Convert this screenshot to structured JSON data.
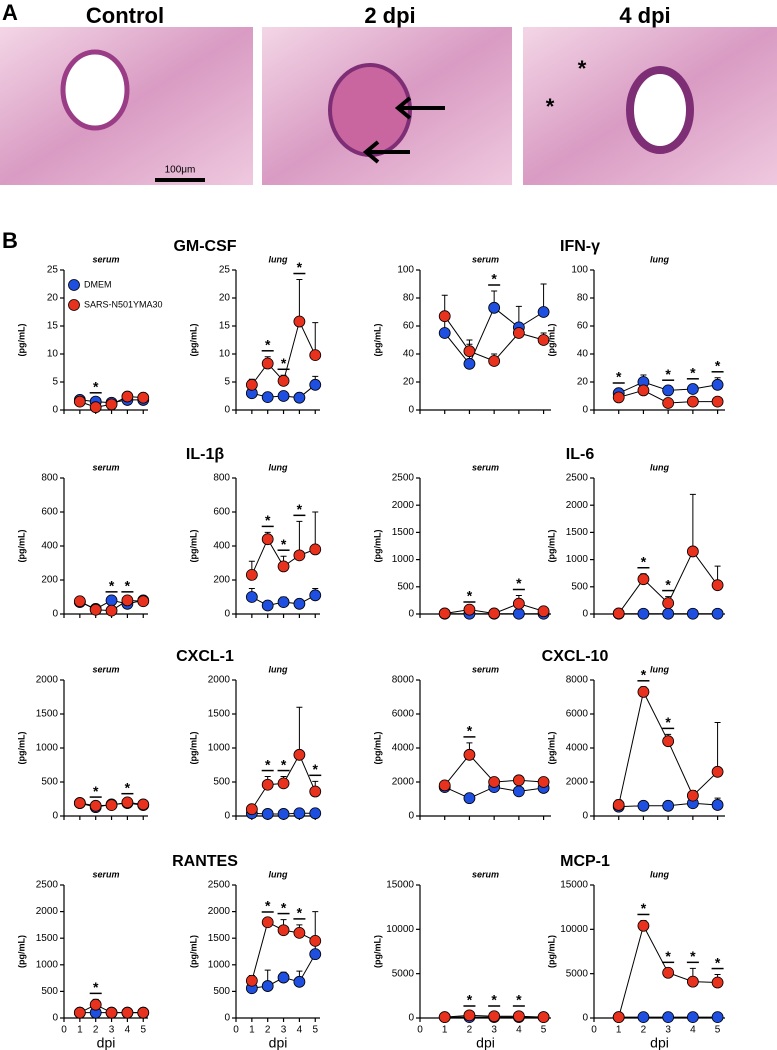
{
  "panel_a": {
    "label": "A",
    "images": [
      {
        "title": "Control",
        "scale": "100μm"
      },
      {
        "title": "2 dpi"
      },
      {
        "title": "4 dpi",
        "marks": [
          "*",
          "*"
        ]
      }
    ]
  },
  "panel_b": {
    "label": "B",
    "cytokines": [
      "GM-CSF",
      "IFN-γ",
      "IL-1β",
      "IL-6",
      "CXCL-1",
      "CXCL-10",
      "RANTES",
      "MCP-1"
    ]
  },
  "chart_data": [
    {
      "type": "line",
      "title": "serum",
      "ylabel": "(pg/mL)",
      "x": [
        1,
        2,
        3,
        4,
        5
      ],
      "xlim": [
        0,
        5.3
      ],
      "xticks": [
        0,
        1,
        2,
        3,
        4,
        5
      ],
      "ylim": [
        0,
        25
      ],
      "yticks": [
        0,
        5,
        10,
        15,
        20,
        25
      ],
      "legend": "upper left",
      "series": [
        {
          "name": "DMEM",
          "color": "#1f4fe0",
          "values": [
            1.8,
            1.5,
            1.3,
            1.8,
            1.8
          ],
          "errors": [
            0.5,
            0.5,
            0.4,
            0.5,
            0.5
          ]
        },
        {
          "name": "SARS-N501YMA30",
          "color": "#e8321e",
          "values": [
            1.5,
            0.5,
            1.0,
            2.4,
            2.2
          ],
          "errors": [
            0.5,
            0.4,
            0.4,
            0.5,
            0.5
          ]
        }
      ],
      "annotations": [
        {
          "x": 2,
          "text": "*"
        }
      ]
    },
    {
      "type": "line",
      "title": "lung",
      "ylabel": "(pg/mL)",
      "x": [
        1,
        2,
        3,
        4,
        5
      ],
      "xlim": [
        0,
        5.3
      ],
      "xticks": [
        0,
        1,
        2,
        3,
        4,
        5
      ],
      "ylim": [
        0,
        25
      ],
      "yticks": [
        0,
        5,
        10,
        15,
        20,
        25
      ],
      "series": [
        {
          "color": "#1f4fe0",
          "values": [
            3,
            2.3,
            2.5,
            2.2,
            4.5
          ],
          "errors": [
            0.8,
            0.4,
            0.4,
            0.3,
            1.5
          ]
        },
        {
          "color": "#e8321e",
          "values": [
            4.5,
            8.3,
            5.2,
            15.8,
            9.8
          ],
          "errors": [
            1,
            1.2,
            1,
            7.5,
            5.8
          ]
        }
      ],
      "annotations": [
        {
          "x": 2,
          "text": "*"
        },
        {
          "x": 3,
          "text": "*"
        },
        {
          "x": 4,
          "text": "*"
        }
      ]
    },
    {
      "type": "line",
      "title": "serum",
      "ylabel": "(pg/mL)",
      "x": [
        1,
        2,
        3,
        4,
        5
      ],
      "xlim": [
        0,
        5.3
      ],
      "xticks": [
        0,
        1,
        2,
        3,
        4,
        5
      ],
      "ylim": [
        0,
        100
      ],
      "yticks": [
        0,
        20,
        40,
        60,
        80,
        100
      ],
      "series": [
        {
          "color": "#1f4fe0",
          "values": [
            55,
            33,
            73,
            59,
            70
          ],
          "errors": [
            10,
            14,
            12,
            15,
            20
          ]
        },
        {
          "color": "#e8321e",
          "values": [
            67,
            42,
            35,
            55,
            50
          ],
          "errors": [
            15,
            8,
            5,
            5,
            5
          ]
        }
      ],
      "annotations": [
        {
          "x": 3,
          "text": "*"
        }
      ]
    },
    {
      "type": "line",
      "title": "lung",
      "ylabel": "(pg/mL)",
      "x": [
        1,
        2,
        3,
        4,
        5
      ],
      "xlim": [
        0,
        5.3
      ],
      "xticks": [
        0,
        1,
        2,
        3,
        4,
        5
      ],
      "ylim": [
        0,
        100
      ],
      "yticks": [
        0,
        20,
        40,
        60,
        80,
        100
      ],
      "series": [
        {
          "color": "#1f4fe0",
          "values": [
            12,
            20,
            14,
            15,
            18
          ],
          "errors": [
            3,
            5,
            3,
            3,
            5
          ]
        },
        {
          "color": "#e8321e",
          "values": [
            9,
            14,
            5,
            6,
            6
          ],
          "errors": [
            3,
            3,
            2,
            2,
            2
          ]
        }
      ],
      "annotations": [
        {
          "x": 1,
          "text": "*"
        },
        {
          "x": 3,
          "text": "*"
        },
        {
          "x": 4,
          "text": "*"
        },
        {
          "x": 5,
          "text": "*"
        }
      ]
    },
    {
      "type": "line",
      "title": "serum",
      "ylabel": "(pg/mL)",
      "x": [
        1,
        2,
        3,
        4,
        5
      ],
      "xlim": [
        0,
        5.3
      ],
      "xticks": [
        0,
        1,
        2,
        3,
        4,
        5
      ],
      "ylim": [
        0,
        800
      ],
      "yticks": [
        0,
        200,
        400,
        600,
        800
      ],
      "series": [
        {
          "color": "#1f4fe0",
          "values": [
            70,
            30,
            80,
            60,
            80
          ],
          "errors": [
            15,
            10,
            15,
            10,
            15
          ]
        },
        {
          "color": "#e8321e",
          "values": [
            75,
            25,
            20,
            80,
            75
          ],
          "errors": [
            15,
            10,
            10,
            15,
            10
          ]
        }
      ],
      "annotations": [
        {
          "x": 3,
          "text": "*"
        },
        {
          "x": 4,
          "text": "*"
        }
      ]
    },
    {
      "type": "line",
      "title": "lung",
      "ylabel": "(pg/mL)",
      "x": [
        1,
        2,
        3,
        4,
        5
      ],
      "xlim": [
        0,
        5.3
      ],
      "xticks": [
        0,
        1,
        2,
        3,
        4,
        5
      ],
      "ylim": [
        0,
        800
      ],
      "yticks": [
        0,
        200,
        400,
        600,
        800
      ],
      "series": [
        {
          "color": "#1f4fe0",
          "values": [
            100,
            50,
            70,
            60,
            110
          ],
          "errors": [
            50,
            15,
            30,
            20,
            40
          ]
        },
        {
          "color": "#e8321e",
          "values": [
            230,
            440,
            280,
            345,
            380
          ],
          "errors": [
            80,
            40,
            60,
            200,
            220
          ]
        }
      ],
      "annotations": [
        {
          "x": 2,
          "text": "*"
        },
        {
          "x": 3,
          "text": "*"
        },
        {
          "x": 4,
          "text": "*"
        }
      ]
    },
    {
      "type": "line",
      "title": "serum",
      "ylabel": "(pg/mL)",
      "x": [
        1,
        2,
        3,
        4,
        5
      ],
      "xlim": [
        0,
        5.3
      ],
      "xticks": [
        0,
        1,
        2,
        3,
        4,
        5
      ],
      "ylim": [
        0,
        2500
      ],
      "yticks": [
        0,
        500,
        1000,
        1500,
        2000,
        2500
      ],
      "series": [
        {
          "color": "#1f4fe0",
          "values": [
            5,
            5,
            5,
            5,
            5
          ],
          "errors": [
            3,
            3,
            3,
            3,
            3
          ]
        },
        {
          "color": "#e8321e",
          "values": [
            10,
            80,
            10,
            190,
            50
          ],
          "errors": [
            5,
            20,
            5,
            150,
            20
          ]
        }
      ],
      "annotations": [
        {
          "x": 2,
          "text": "*"
        },
        {
          "x": 4,
          "text": "*"
        }
      ]
    },
    {
      "type": "line",
      "title": "lung",
      "ylabel": "(pg/mL)",
      "x": [
        1,
        2,
        3,
        4,
        5
      ],
      "xlim": [
        0,
        5.3
      ],
      "xticks": [
        0,
        1,
        2,
        3,
        4,
        5
      ],
      "ylim": [
        0,
        2500
      ],
      "yticks": [
        0,
        500,
        1000,
        1500,
        2000,
        2500
      ],
      "series": [
        {
          "color": "#1f4fe0",
          "values": [
            5,
            5,
            5,
            5,
            5
          ],
          "errors": [
            3,
            3,
            3,
            3,
            3
          ]
        },
        {
          "color": "#e8321e",
          "values": [
            10,
            640,
            200,
            1150,
            530
          ],
          "errors": [
            5,
            100,
            120,
            1050,
            350
          ]
        }
      ],
      "annotations": [
        {
          "x": 2,
          "text": "*"
        },
        {
          "x": 3,
          "text": "*"
        }
      ]
    },
    {
      "type": "line",
      "title": "serum",
      "ylabel": "(pg/mL)",
      "x": [
        1,
        2,
        3,
        4,
        5
      ],
      "xlim": [
        0,
        5.3
      ],
      "xticks": [
        0,
        1,
        2,
        3,
        4,
        5
      ],
      "ylim": [
        0,
        2000
      ],
      "yticks": [
        0,
        500,
        1000,
        1500,
        2000
      ],
      "series": [
        {
          "color": "#1f4fe0",
          "values": [
            190,
            130,
            170,
            190,
            160
          ],
          "errors": [
            40,
            40,
            40,
            40,
            40
          ]
        },
        {
          "color": "#e8321e",
          "values": [
            190,
            150,
            160,
            200,
            170
          ],
          "errors": [
            40,
            40,
            40,
            40,
            40
          ]
        }
      ],
      "annotations": [
        {
          "x": 2,
          "text": "*"
        },
        {
          "x": 4,
          "text": "*"
        }
      ]
    },
    {
      "type": "line",
      "title": "lung",
      "ylabel": "(pg/mL)",
      "x": [
        1,
        2,
        3,
        4,
        5
      ],
      "xlim": [
        0,
        5.3
      ],
      "xticks": [
        0,
        1,
        2,
        3,
        4,
        5
      ],
      "ylim": [
        0,
        2000
      ],
      "yticks": [
        0,
        500,
        1000,
        1500,
        2000
      ],
      "series": [
        {
          "color": "#1f4fe0",
          "values": [
            40,
            30,
            30,
            40,
            40
          ],
          "errors": [
            20,
            20,
            20,
            20,
            20
          ]
        },
        {
          "color": "#e8321e",
          "values": [
            100,
            460,
            480,
            900,
            360
          ],
          "errors": [
            30,
            120,
            100,
            700,
            150
          ]
        }
      ],
      "annotations": [
        {
          "x": 2,
          "text": "*"
        },
        {
          "x": 3,
          "text": "*"
        },
        {
          "x": 5,
          "text": "*"
        }
      ]
    },
    {
      "type": "line",
      "title": "serum",
      "ylabel": "(pg/mL)",
      "x": [
        1,
        2,
        3,
        4,
        5
      ],
      "xlim": [
        0,
        5.3
      ],
      "xticks": [
        0,
        1,
        2,
        3,
        4,
        5
      ],
      "ylim": [
        0,
        8000
      ],
      "yticks": [
        0,
        2000,
        4000,
        6000,
        8000
      ],
      "series": [
        {
          "color": "#1f4fe0",
          "values": [
            1700,
            1050,
            1700,
            1450,
            1650
          ],
          "errors": [
            200,
            200,
            300,
            400,
            300
          ]
        },
        {
          "color": "#e8321e",
          "values": [
            1800,
            3600,
            2000,
            2100,
            2000
          ],
          "errors": [
            200,
            700,
            200,
            200,
            200
          ]
        }
      ],
      "annotations": [
        {
          "x": 2,
          "text": "*"
        }
      ]
    },
    {
      "type": "line",
      "title": "lung",
      "ylabel": "(pg/mL)",
      "x": [
        1,
        2,
        3,
        4,
        5
      ],
      "xlim": [
        0,
        5.3
      ],
      "xticks": [
        0,
        1,
        2,
        3,
        4,
        5
      ],
      "ylim": [
        0,
        8000
      ],
      "yticks": [
        0,
        2000,
        4000,
        6000,
        8000
      ],
      "series": [
        {
          "color": "#1f4fe0",
          "values": [
            550,
            600,
            600,
            750,
            650
          ],
          "errors": [
            300,
            200,
            200,
            300,
            400
          ]
        },
        {
          "color": "#e8321e",
          "values": [
            650,
            7300,
            4400,
            1200,
            2600
          ],
          "errors": [
            300,
            300,
            400,
            300,
            2900
          ]
        }
      ],
      "annotations": [
        {
          "x": 2,
          "text": "*"
        },
        {
          "x": 3,
          "text": "*"
        }
      ]
    },
    {
      "type": "line",
      "title": "serum",
      "ylabel": "(pg/mL)",
      "xlabel": "dpi",
      "x": [
        1,
        2,
        3,
        4,
        5
      ],
      "xlim": [
        0,
        5.3
      ],
      "xticks": [
        0,
        1,
        2,
        3,
        4,
        5
      ],
      "ylim": [
        0,
        2500
      ],
      "yticks": [
        0,
        500,
        1000,
        1500,
        2000,
        2500
      ],
      "series": [
        {
          "color": "#1f4fe0",
          "values": [
            100,
            100,
            100,
            100,
            100
          ],
          "errors": [
            30,
            30,
            30,
            30,
            30
          ]
        },
        {
          "color": "#e8321e",
          "values": [
            100,
            250,
            100,
            100,
            100
          ],
          "errors": [
            30,
            100,
            30,
            30,
            30
          ]
        }
      ],
      "annotations": [
        {
          "x": 2,
          "text": "*"
        }
      ]
    },
    {
      "type": "line",
      "title": "lung",
      "ylabel": "(pg/mL)",
      "xlabel": "dpi",
      "x": [
        1,
        2,
        3,
        4,
        5
      ],
      "xlim": [
        0,
        5.3
      ],
      "xticks": [
        0,
        1,
        2,
        3,
        4,
        5
      ],
      "ylim": [
        0,
        2500
      ],
      "yticks": [
        0,
        500,
        1000,
        1500,
        2000,
        2500
      ],
      "series": [
        {
          "color": "#1f4fe0",
          "values": [
            560,
            600,
            760,
            680,
            1200
          ],
          "errors": [
            100,
            300,
            100,
            200,
            200
          ]
        },
        {
          "color": "#e8321e",
          "values": [
            700,
            1800,
            1650,
            1600,
            1450
          ],
          "errors": [
            100,
            80,
            200,
            150,
            550
          ]
        }
      ],
      "annotations": [
        {
          "x": 2,
          "text": "*"
        },
        {
          "x": 3,
          "text": "*"
        },
        {
          "x": 4,
          "text": "*"
        }
      ]
    },
    {
      "type": "line",
      "title": "serum",
      "ylabel": "(pg/mL)",
      "xlabel": "dpi",
      "x": [
        1,
        2,
        3,
        4,
        5
      ],
      "xlim": [
        0,
        5.3
      ],
      "xticks": [
        0,
        1,
        2,
        3,
        4,
        5
      ],
      "ylim": [
        0,
        15000
      ],
      "yticks": [
        0,
        5000,
        10000,
        15000
      ],
      "series": [
        {
          "color": "#1f4fe0",
          "values": [
            100,
            100,
            100,
            100,
            100
          ],
          "errors": [
            50,
            50,
            50,
            50,
            50
          ]
        },
        {
          "color": "#e8321e",
          "values": [
            100,
            300,
            200,
            200,
            100
          ],
          "errors": [
            50,
            200,
            100,
            100,
            50
          ]
        }
      ],
      "annotations": [
        {
          "x": 2,
          "text": "*"
        },
        {
          "x": 3,
          "text": "*"
        },
        {
          "x": 4,
          "text": "*"
        }
      ]
    },
    {
      "type": "line",
      "title": "lung",
      "ylabel": "(pg/mL)",
      "xlabel": "dpi",
      "x": [
        1,
        2,
        3,
        4,
        5
      ],
      "xlim": [
        0,
        5.3
      ],
      "xticks": [
        0,
        1,
        2,
        3,
        4,
        5
      ],
      "ylim": [
        0,
        15000
      ],
      "yticks": [
        0,
        5000,
        10000,
        15000
      ],
      "series": [
        {
          "color": "#1f4fe0",
          "values": [
            100,
            100,
            100,
            100,
            100
          ],
          "errors": [
            50,
            50,
            50,
            50,
            50
          ]
        },
        {
          "color": "#e8321e",
          "values": [
            100,
            10400,
            5100,
            4100,
            4000
          ],
          "errors": [
            50,
            600,
            500,
            1500,
            900
          ]
        }
      ],
      "annotations": [
        {
          "x": 2,
          "text": "*"
        },
        {
          "x": 3,
          "text": "*"
        },
        {
          "x": 4,
          "text": "*"
        },
        {
          "x": 5,
          "text": "*"
        }
      ]
    }
  ]
}
